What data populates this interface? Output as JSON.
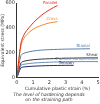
{
  "chart_data": {
    "type": "line",
    "subtitle": [
      "The level of hardening depends",
      "on the straining path"
    ],
    "x_label": "Cumulative plastic strain (%)",
    "y_label": "Equivalent stress (MPa)",
    "x": [
      0,
      0.25,
      0.5,
      1,
      1.5,
      2,
      2.5,
      3,
      3.5,
      4,
      4.5,
      5
    ],
    "xlim": [
      0,
      5
    ],
    "xticks": [
      0,
      1,
      2,
      3,
      4,
      5
    ],
    "ylim": [
      0,
      600
    ],
    "yticks": [
      0,
      200,
      400,
      600
    ],
    "grid": false,
    "series": [
      {
        "name": "Parallel",
        "color": "#e0301e",
        "values": [
          0,
          280,
          360,
          440,
          500,
          545,
          580,
          null,
          null,
          null,
          null,
          null
        ]
      },
      {
        "name": "Cross",
        "color": "#f08a30",
        "values": [
          0,
          260,
          330,
          390,
          420,
          440,
          450,
          null,
          null,
          null,
          null,
          null
        ]
      },
      {
        "name": "Biaxial",
        "color": "#5a7fa8",
        "values": [
          0,
          180,
          200,
          215,
          222,
          226,
          228,
          230,
          231,
          232,
          233,
          null
        ]
      },
      {
        "name": "Shear",
        "color": "#3a3a3a",
        "values": [
          0,
          120,
          135,
          145,
          150,
          153,
          155,
          157,
          158,
          159,
          160,
          160
        ]
      },
      {
        "name": "Traction-compression",
        "color": "#6a8fb8",
        "values": [
          0,
          100,
          110,
          118,
          122,
          125,
          127,
          128,
          129,
          130,
          130,
          130
        ]
      },
      {
        "name": "Tension",
        "color": "#1a2a6a",
        "values": [
          0,
          80,
          88,
          93,
          96,
          98,
          99,
          100,
          100,
          null,
          null,
          null
        ]
      }
    ]
  }
}
